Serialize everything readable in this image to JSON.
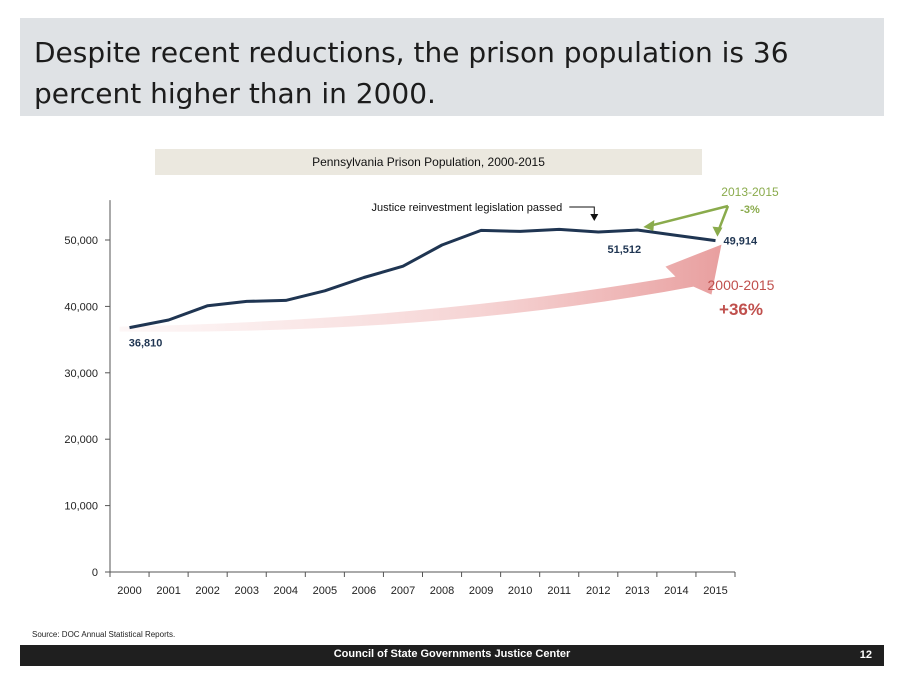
{
  "headline": "Despite recent reductions, the prison population is 36 percent higher than in 2000.",
  "chart_data": {
    "type": "line",
    "title": "Pennsylvania Prison Population, 2000-2015",
    "x": [
      "2000",
      "2001",
      "2002",
      "2003",
      "2004",
      "2005",
      "2006",
      "2007",
      "2008",
      "2009",
      "2010",
      "2011",
      "2012",
      "2013",
      "2014",
      "2015"
    ],
    "series": [
      {
        "values": [
          36810,
          37950,
          40100,
          40750,
          40900,
          42350,
          44350,
          46050,
          49250,
          51450,
          51300,
          51600,
          51200,
          51512,
          50700,
          49914
        ]
      }
    ],
    "yticks": [
      0,
      10000,
      20000,
      30000,
      40000,
      50000
    ],
    "ytick_labels": [
      "0",
      "10,000",
      "20,000",
      "30,000",
      "40,000",
      "50,000"
    ],
    "ylim": [
      0,
      56000
    ],
    "grid": false,
    "data_labels": [
      {
        "x": "2000",
        "text": "36,810"
      },
      {
        "x": "2013",
        "text": "51,512"
      },
      {
        "x": "2015",
        "text": "49,914"
      }
    ],
    "annotations": {
      "legislation": {
        "x": "2012",
        "text": "Justice reinvestment legislation passed"
      },
      "recent_change": {
        "period": "2013-2015",
        "change": "-3%",
        "color": "#8aab4c"
      },
      "overall_change": {
        "period": "2000-2015",
        "change": "+36%",
        "color": "#c0504d"
      }
    },
    "line_color": "#1f3552"
  },
  "source": "Source: DOC Annual Statistical Reports.",
  "footer": {
    "org": "Council of State Governments Justice Center",
    "page": "12"
  }
}
